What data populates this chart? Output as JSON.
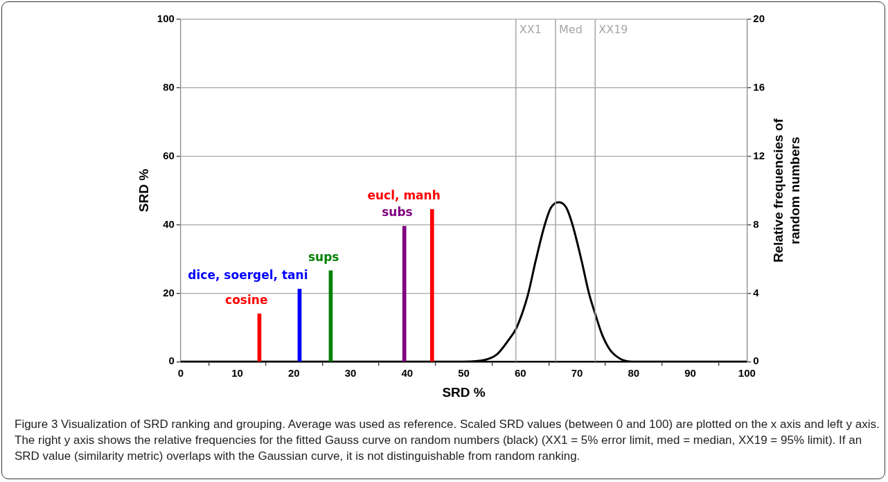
{
  "chart_data": {
    "type": "bar",
    "xlabel": "SRD %",
    "ylabel": "SRD %",
    "y2label": "Relative frequencies of random numbers",
    "xlim": [
      0,
      100
    ],
    "xticks": [
      0,
      10,
      20,
      30,
      40,
      50,
      60,
      70,
      80,
      90,
      100
    ],
    "ylim": [
      0,
      100
    ],
    "yticks": [
      0,
      20,
      40,
      60,
      80,
      100
    ],
    "y2lim": [
      0,
      20
    ],
    "y2ticks": [
      0,
      4,
      8,
      12,
      16,
      20
    ],
    "grid": "y",
    "legend": false,
    "series": [
      {
        "name": "cosine",
        "color": "#ff0000",
        "x": [
          13.9
        ],
        "values": [
          14.0
        ]
      },
      {
        "name": "dice, soergel, tani",
        "color": "#0000ff",
        "x": [
          21.0
        ],
        "values": [
          21.2
        ]
      },
      {
        "name": "sups",
        "color": "#008000",
        "x": [
          26.5
        ],
        "values": [
          26.6
        ]
      },
      {
        "name": "subs",
        "color": "#800080",
        "x": [
          39.5
        ],
        "values": [
          39.6
        ]
      },
      {
        "name": "eucl, manh",
        "color": "#ff0000",
        "x": [
          44.4
        ],
        "values": [
          44.5
        ]
      },
      {
        "type": "line",
        "axis": "y2",
        "color": "#000000",
        "marker": "none",
        "x": [
          0,
          50,
          53.7,
          55.9,
          58.2,
          59.2,
          60.5,
          61.4,
          62.7,
          64.3,
          65.4,
          66.8,
          68.1,
          69.2,
          70.8,
          72.1,
          73.2,
          74.4,
          75.8,
          77.6,
          79.8,
          100
        ],
        "values": [
          0,
          0,
          0.1,
          0.44,
          1.4,
          1.9,
          3.0,
          4.0,
          5.9,
          8.0,
          9.0,
          9.32,
          9.0,
          8.0,
          5.9,
          4.0,
          2.8,
          1.6,
          0.7,
          0.17,
          0,
          0
        ]
      }
    ],
    "ref_lines": [
      {
        "axis": "x",
        "value": 59.2,
        "label": "XX1",
        "color": "#a6a6a6"
      },
      {
        "axis": "x",
        "value": 66.2,
        "label": "Med",
        "color": "#a6a6a6"
      },
      {
        "axis": "x",
        "value": 73.2,
        "label": "XX19",
        "color": "#a6a6a6"
      }
    ],
    "annotations": [
      "Figure 3 Visualization of SRD ranking and grouping. Average was used as reference. Scaled SRD values (between 0 and 100) are plotted on the x axis and left y axis. The right y axis shows the relative frequencies for the fitted Gauss curve on random numbers (black) (XX1 = 5% error limit, med = median, XX19 = 95% limit). If an SRD value (similarity metric) overlaps with the Gaussian curve, it is not distinguishable from random ranking."
    ]
  }
}
